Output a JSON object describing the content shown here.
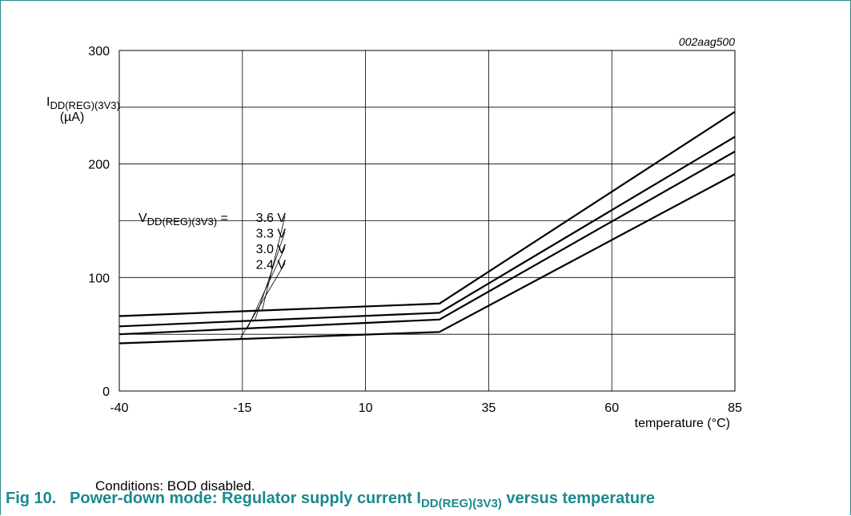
{
  "figure_code": "002aag500",
  "conditions": "Conditions: BOD disabled.",
  "caption": {
    "number": "Fig 10.",
    "text_before": "Power-down mode: Regulator supply current I",
    "subscript": "DD(REG)(3V3)",
    "text_after": " versus temperature"
  },
  "chart_data": {
    "type": "line",
    "ylabel": {
      "symbol": "I",
      "subscript": "DD(REG)(3V3)",
      "unit": "(µA)"
    },
    "xlabel": "temperature (°C)",
    "x_ticks": [
      "-40",
      "-15",
      "10",
      "35",
      "60",
      "85"
    ],
    "y_ticks": [
      "0",
      "100",
      "200",
      "300"
    ],
    "xlim": [
      -40,
      85
    ],
    "ylim": [
      0,
      300
    ],
    "grid": true,
    "series_label": {
      "symbol": "V",
      "subscript": "DD(REG)(3V3)",
      "eq": " = "
    },
    "x": [
      -40,
      25,
      85
    ],
    "series": [
      {
        "name": "3.6 V",
        "values": [
          66,
          77,
          246
        ]
      },
      {
        "name": "3.3 V",
        "values": [
          57,
          69,
          224
        ]
      },
      {
        "name": "3.0 V",
        "values": [
          50,
          63,
          211
        ]
      },
      {
        "name": "2.4 V",
        "values": [
          42,
          52,
          191
        ]
      }
    ],
    "colors": {
      "line": "#000000",
      "grid": "#000000",
      "caption": "#1a8a8f",
      "frame": "#2b8a8d"
    }
  }
}
